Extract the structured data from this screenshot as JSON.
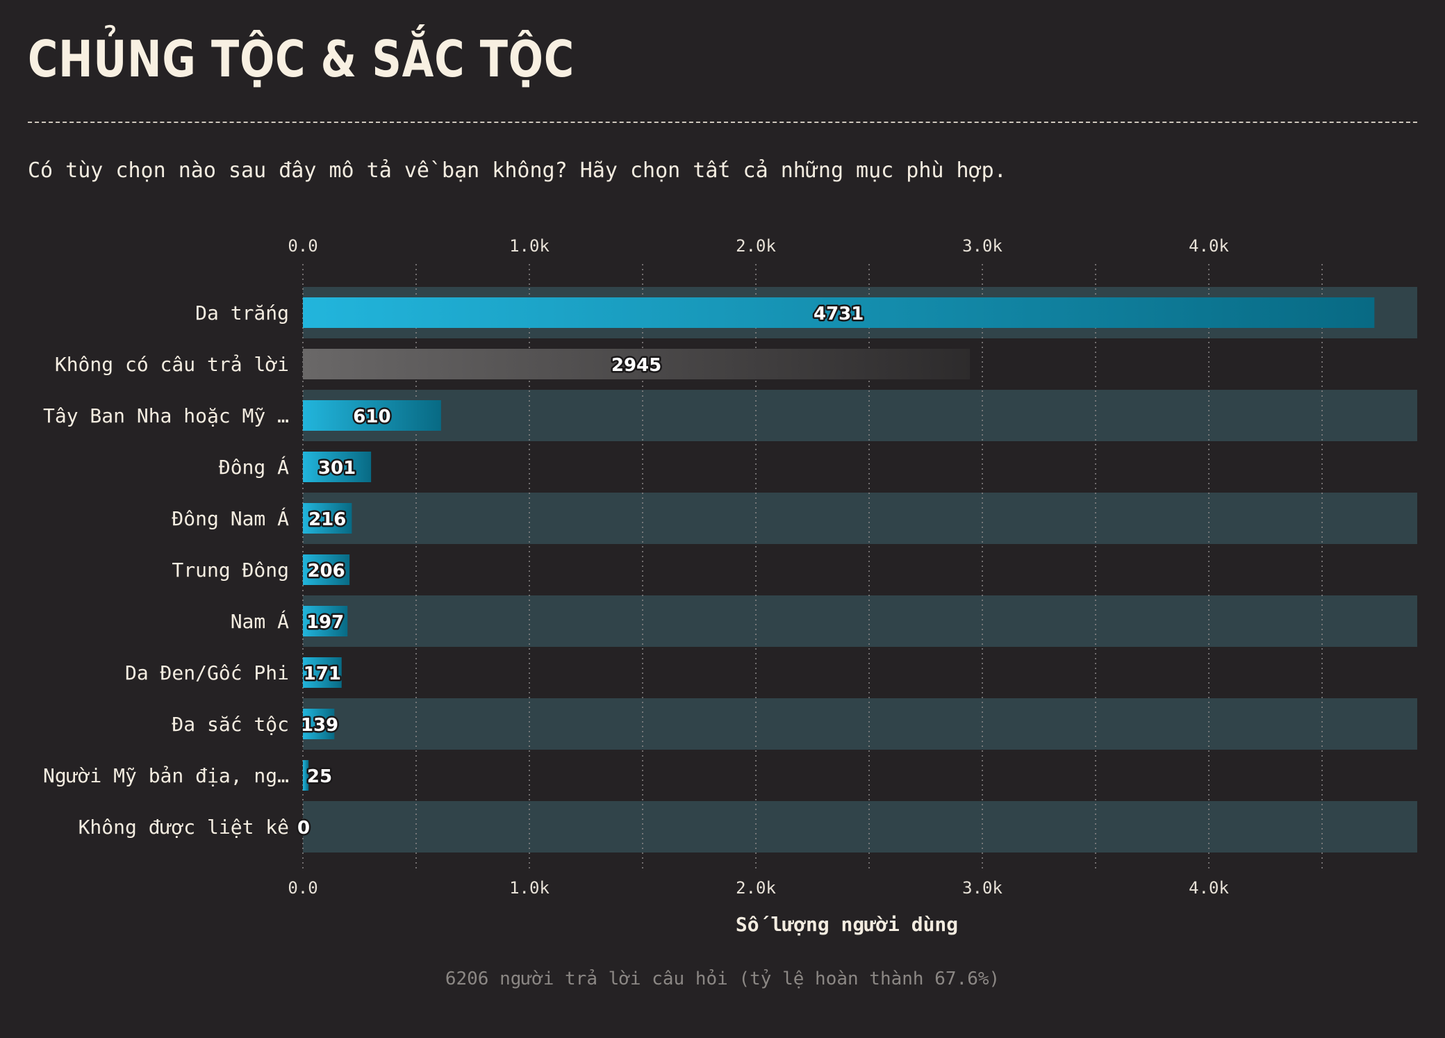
{
  "header": {
    "title": "CHỦNG TỘC & SẮC TỘC",
    "question": "Có tùy chọn nào sau đây mô tả về bạn không? Hãy chọn tất cả những mục phù hợp."
  },
  "footer": {
    "note": "6206 người trả lời câu hỏi (tỷ lệ hoàn thành 67.6%)"
  },
  "colors": {
    "background": "#252224",
    "bar_highlight_start": "#22b5dc",
    "bar_highlight_end": "#086a84",
    "bar_neutral_start": "#6a6868",
    "bar_neutral_end": "#2d2b2c",
    "row_band": "#31444a",
    "text": "#f3ece0"
  },
  "chart_data": {
    "type": "bar",
    "orientation": "horizontal",
    "categories": [
      "Da trắng",
      "Không có câu trả lời",
      "Tây Ban Nha hoặc Mỹ …",
      "Đông Á",
      "Đông Nam Á",
      "Trung Đông",
      "Nam Á",
      "Da Đen/Gốc Phi",
      "Đa sắc tộc",
      "Người Mỹ bản địa, ng…",
      "Không được liệt kê"
    ],
    "values": [
      4731,
      2945,
      610,
      301,
      216,
      206,
      197,
      171,
      139,
      25,
      0
    ],
    "data_labels": [
      "4731",
      "2945",
      "610",
      "301",
      "216",
      "206",
      "197",
      "171",
      "139",
      "25",
      "0"
    ],
    "neutral_categories": [
      "Không có câu trả lời"
    ],
    "xlabel": "Số lượng người dùng",
    "xlim": [
      0,
      4920
    ],
    "xticks": [
      0,
      1000,
      2000,
      3000,
      4000
    ],
    "xtick_labels": [
      "0.0",
      "1.0k",
      "2.0k",
      "3.0k",
      "4.0k"
    ],
    "minor_gridlines": [
      500,
      1500,
      2500,
      3500,
      4500
    ],
    "axis_position": "top and bottom",
    "grid": true,
    "alternating_row_bands": true
  }
}
